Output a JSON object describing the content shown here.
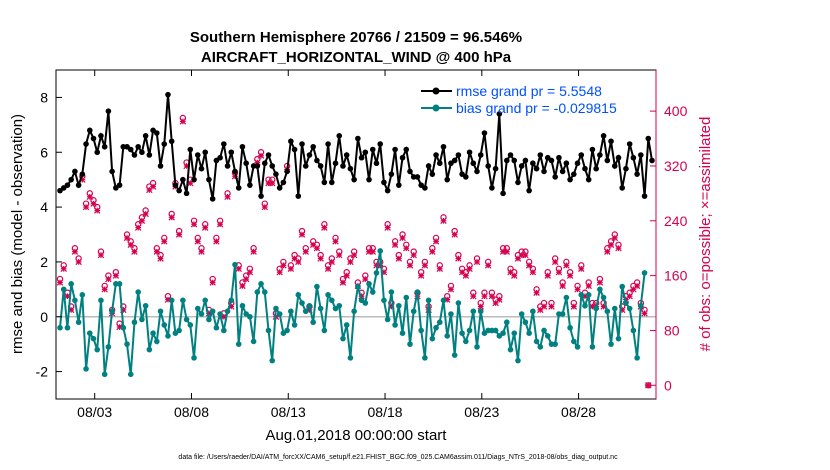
{
  "chart_data": {
    "type": "line",
    "title": "Southern Hemisphere 20766 / 21509 = 96.546%",
    "subtitle": "AIRCRAFT_HORIZONTAL_WIND @ 400 hPa",
    "xlabel": "Aug.01,2018 00:00:00 start",
    "ylabel_left": "rmse and bias (model - observation)",
    "ylabel_right": "# of obs: o=possible; ×=assimilated",
    "footer": "data file: /Users/raeder/DAI/ATM_forcXX/CAM6_setup/f.e21.FHIST_BGC.f09_025.CAM6assim.011/Diags_NTrS_2018-08/obs_diag_output.nc",
    "x_tick_labels": [
      "08/03",
      "08/08",
      "08/13",
      "08/18",
      "08/23",
      "08/28"
    ],
    "x_ticks_days": [
      3,
      8,
      13,
      18,
      23,
      28
    ],
    "xlim_days": [
      1,
      32
    ],
    "ylim_left": [
      -3,
      9
    ],
    "y_left_ticks": [
      "-2",
      "0",
      "2",
      "4",
      "6",
      "8"
    ],
    "ylim_right": [
      -20,
      460
    ],
    "y_right_ticks": [
      "0",
      "80",
      "160",
      "240",
      "320",
      "400"
    ],
    "colors": {
      "rmse": "#000000",
      "bias": "#008080",
      "obs": "#d6004f",
      "zero_line": "#bbbbbb"
    },
    "series": [
      {
        "name": "rmse grand pr = 5.5548",
        "axis": "left",
        "values": [
          4.6,
          4.7,
          4.8,
          5.0,
          5.3,
          4.8,
          5.2,
          6.3,
          6.8,
          6.5,
          6.0,
          6.6,
          6.2,
          7.5,
          5.3,
          4.7,
          4.8,
          6.2,
          6.2,
          6.1,
          5.9,
          6.2,
          6.0,
          6.6,
          5.9,
          6.8,
          6.7,
          5.5,
          6.3,
          8.1,
          6.4,
          4.8,
          4.6,
          5.0,
          4.5,
          6.1,
          5.0,
          5.9,
          5.4,
          6.0,
          5.0,
          4.3,
          5.7,
          5.8,
          6.3,
          5.5,
          6.0,
          5.3,
          4.7,
          6.2,
          5.6,
          4.8,
          5.5,
          5.5,
          4.4,
          5.6,
          5.9,
          5.5,
          5.2,
          4.7,
          4.9,
          5.3,
          6.4,
          6.1,
          4.4,
          6.3,
          5.5,
          5.9,
          6.2,
          5.7,
          5.5,
          4.9,
          6.3,
          4.9,
          5.6,
          6.6,
          5.5,
          5.9,
          5.4,
          5.0,
          6.5,
          5.8,
          6.0,
          5.0,
          6.1,
          5.6,
          6.3,
          4.9,
          4.6,
          5.2,
          6.1,
          4.8,
          5.8,
          6.1,
          5.3,
          5.1,
          5.1,
          4.8,
          4.7,
          5.5,
          5.2,
          5.9,
          5.6,
          6.2,
          5.0,
          5.6,
          5.7,
          5.9,
          5.2,
          5.1,
          6.0,
          5.6,
          5.3,
          5.9,
          6.7,
          5.5,
          4.7,
          5.4,
          7.4,
          4.5,
          5.7,
          5.9,
          5.7,
          4.9,
          5.5,
          5.7,
          4.6,
          5.6,
          5.4,
          5.9,
          5.3,
          5.8,
          5.7,
          5.1,
          5.8,
          5.3,
          5.6,
          5.0,
          5.2,
          5.6,
          5.9,
          5.4,
          5.0,
          6.1,
          5.4,
          5.9,
          6.6,
          5.7,
          6.4,
          5.5,
          5.8,
          4.7,
          5.4,
          6.3,
          5.8,
          5.2,
          5.9,
          4.4,
          6.5,
          5.7
        ]
      },
      {
        "name": "bias grand pr = -0.029815",
        "axis": "left",
        "values": [
          -0.4,
          1.0,
          -0.4,
          1.2,
          0.6,
          -0.2,
          0.8,
          -1.9,
          -0.6,
          -0.8,
          -1.2,
          0.6,
          -2.1,
          -1.1,
          0.2,
          1.2,
          1.2,
          -0.4,
          -1.0,
          -2.1,
          -0.2,
          0.9,
          -0.1,
          0.4,
          -1.2,
          -0.6,
          -0.9,
          0.2,
          -0.3,
          -0.7,
          0.6,
          -0.6,
          -0.5,
          0.6,
          -0.1,
          -0.3,
          -1.5,
          0.3,
          0.1,
          0.6,
          -0.1,
          0.2,
          -0.4,
          0.1,
          -0.5,
          0.2,
          0.6,
          1.9,
          -1.0,
          0.4,
          0.1,
          0.0,
          -0.9,
          0.9,
          1.2,
          0.9,
          -0.5,
          -1.6,
          0.3,
          0.1,
          -0.6,
          -0.5,
          0.2,
          -0.3,
          0.8,
          0.5,
          0.2,
          0.4,
          -0.2,
          1.1,
          0.3,
          -0.5,
          0.8,
          0.6,
          0.3,
          0.4,
          -0.8,
          -0.3,
          -1.5,
          0.2,
          1.1,
          0.6,
          0.5,
          1.2,
          0.9,
          1.6,
          2.4,
          0.6,
          -0.1,
          0.9,
          -0.3,
          0.4,
          -0.6,
          0.7,
          -1.0,
          0.2,
          0.9,
          -0.5,
          -1.5,
          0.6,
          -0.8,
          -0.4,
          -0.2,
          0.6,
          -0.7,
          0.1,
          -1.4,
          0.5,
          -0.6,
          -0.9,
          -0.5,
          0.2,
          -1.1,
          0.2,
          -0.6,
          -0.5,
          -0.5,
          -0.5,
          -0.7,
          -0.6,
          -0.2,
          -1.2,
          -0.6,
          -1.6,
          0.1,
          -0.2,
          -0.6,
          0.2,
          -0.9,
          -1.1,
          -0.5,
          -0.7,
          -1.0,
          -1.0,
          0.1,
          0.1,
          0.7,
          -0.4,
          -0.9,
          -1.1,
          0.8,
          0.4,
          0.8,
          -1.1,
          0.3,
          1.0,
          0.7,
          0.2,
          -1.0,
          0.3,
          -0.8,
          1.1,
          0.5,
          0.3,
          -0.5,
          -1.5,
          0.4,
          1.6
        ]
      },
      {
        "name": "obs possible (o)",
        "axis": "right",
        "values": [
          155,
          175,
          135,
          115,
          200,
          185,
          305,
          265,
          280,
          270,
          260,
          195,
          145,
          160,
          110,
          165,
          90,
          115,
          220,
          210,
          200,
          235,
          245,
          255,
          290,
          295,
          200,
          190,
          215,
          130,
          250,
          295,
          225,
          390,
          325,
          300,
          240,
          215,
          200,
          235,
          110,
          155,
          215,
          240,
          105,
          280,
          120,
          310,
          175,
          150,
          160,
          170,
          200,
          330,
          340,
          265,
          300,
          300,
          105,
          170,
          180,
          320,
          175,
          190,
          185,
          225,
          200,
          115,
          210,
          205,
          190,
          235,
          175,
          185,
          215,
          195,
          155,
          165,
          185,
          195,
          150,
          135,
          160,
          200,
          200,
          180,
          180,
          170,
          235,
          120,
          210,
          190,
          220,
          205,
          180,
          195,
          135,
          165,
          180,
          115,
          200,
          215,
          175,
          245,
          130,
          145,
          225,
          190,
          170,
          165,
          175,
          135,
          185,
          120,
          135,
          180,
          135,
          125,
          130,
          200,
          200,
          170,
          165,
          190,
          195,
          195,
          180,
          170,
          140,
          115,
          120,
          165,
          120,
          185,
          170,
          150,
          180,
          165,
          120,
          145,
          175,
          135,
          150,
          120,
          120,
          155,
          120,
          200,
          210,
          220,
          205,
          115,
          130,
          135,
          145,
          150,
          120,
          110,
          0
        ]
      },
      {
        "name": "obs assimilated (×)",
        "axis": "right",
        "values": [
          150,
          170,
          130,
          110,
          195,
          180,
          300,
          260,
          275,
          265,
          255,
          190,
          140,
          155,
          105,
          160,
          85,
          110,
          215,
          205,
          195,
          230,
          240,
          250,
          285,
          290,
          195,
          185,
          210,
          125,
          245,
          290,
          220,
          385,
          320,
          295,
          235,
          210,
          195,
          230,
          105,
          150,
          210,
          235,
          100,
          275,
          115,
          305,
          170,
          145,
          155,
          165,
          195,
          325,
          335,
          260,
          295,
          295,
          100,
          165,
          175,
          315,
          170,
          185,
          180,
          220,
          195,
          110,
          205,
          200,
          185,
          230,
          170,
          180,
          210,
          190,
          150,
          160,
          180,
          190,
          145,
          130,
          155,
          195,
          195,
          175,
          175,
          165,
          230,
          115,
          205,
          185,
          215,
          200,
          175,
          190,
          130,
          160,
          175,
          110,
          195,
          210,
          170,
          240,
          125,
          140,
          220,
          185,
          165,
          160,
          170,
          130,
          180,
          115,
          130,
          175,
          130,
          120,
          125,
          195,
          195,
          165,
          160,
          185,
          190,
          190,
          175,
          165,
          135,
          110,
          115,
          160,
          115,
          180,
          165,
          145,
          175,
          160,
          115,
          140,
          170,
          130,
          145,
          115,
          115,
          150,
          115,
          195,
          205,
          215,
          200,
          110,
          125,
          130,
          140,
          145,
          115,
          105,
          0
        ]
      }
    ]
  }
}
